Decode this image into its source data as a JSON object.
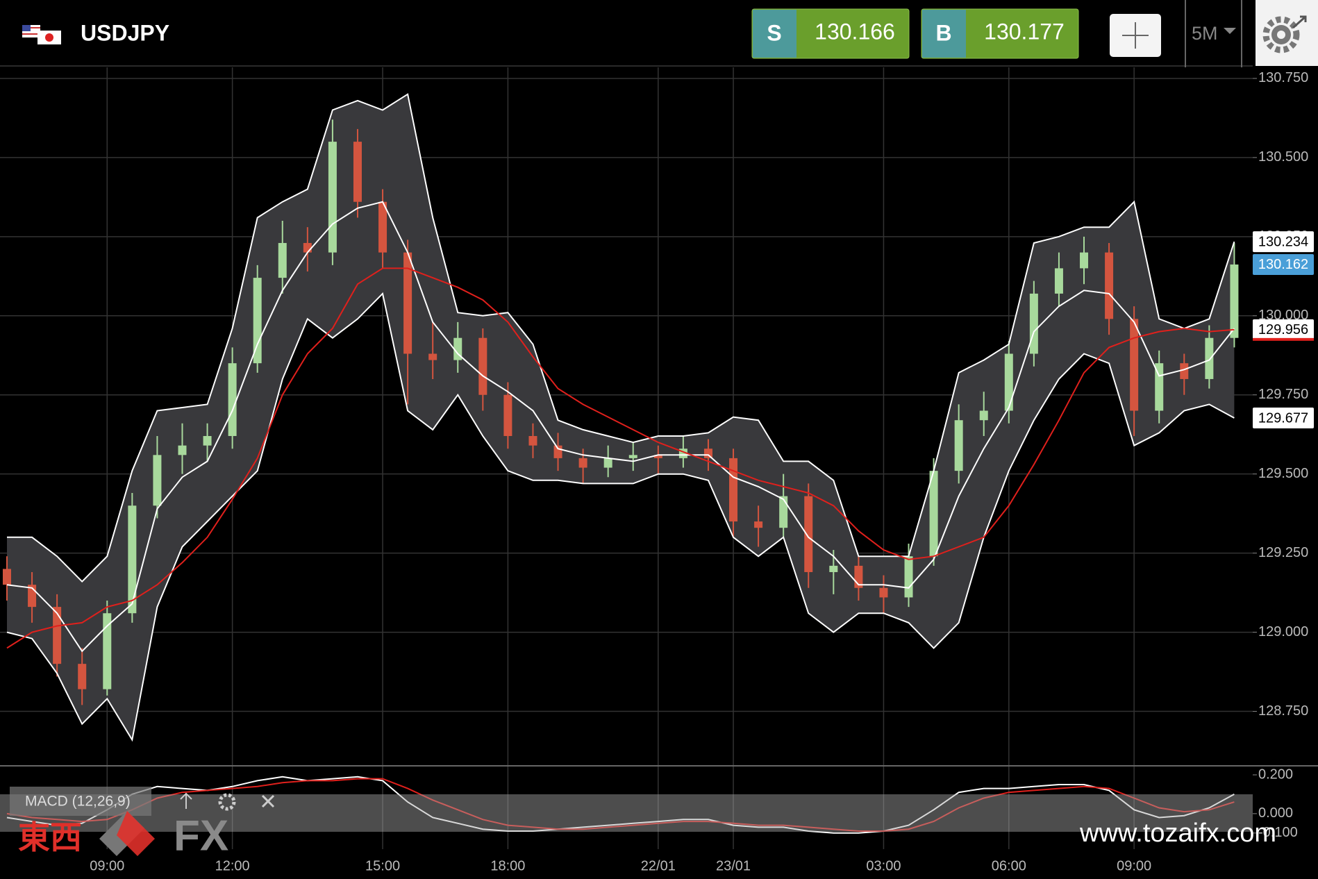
{
  "header": {
    "symbol": "USDJPY",
    "sell": {
      "label": "S",
      "price": 130.166
    },
    "buy": {
      "label": "B",
      "price": 130.177
    },
    "timeframe": "5M"
  },
  "chart_data": [
    {
      "type": "candlestick",
      "categories": [
        null,
        null,
        null,
        null,
        "09:00",
        null,
        null,
        null,
        null,
        "12:00",
        null,
        null,
        null,
        null,
        null,
        "15:00",
        null,
        null,
        null,
        null,
        "18:00",
        null,
        null,
        null,
        null,
        null,
        "22/01",
        null,
        null,
        "23/01",
        null,
        null,
        null,
        null,
        null,
        "03:00",
        null,
        null,
        null,
        null,
        "06:00",
        null,
        null,
        null,
        null,
        "09:00",
        null,
        null,
        null,
        null
      ],
      "open": [
        129.2,
        129.15,
        129.08,
        128.9,
        128.82,
        129.06,
        129.4,
        129.56,
        129.59,
        129.62,
        129.85,
        130.12,
        130.23,
        130.2,
        130.55,
        130.36,
        130.2,
        129.88,
        129.86,
        129.93,
        129.75,
        129.62,
        129.59,
        129.55,
        129.52,
        129.55,
        129.56,
        129.55,
        129.58,
        129.55,
        129.35,
        129.33,
        129.43,
        129.19,
        129.21,
        129.14,
        129.11,
        129.24,
        129.51,
        129.67,
        129.7,
        129.88,
        130.07,
        130.15,
        130.2,
        129.99,
        129.7,
        129.85,
        129.8,
        129.93
      ],
      "high": [
        129.24,
        129.19,
        129.12,
        128.95,
        129.1,
        129.44,
        129.62,
        129.66,
        129.66,
        129.9,
        130.16,
        130.3,
        130.28,
        130.62,
        130.59,
        130.4,
        130.24,
        129.98,
        129.98,
        129.96,
        129.79,
        129.66,
        129.63,
        129.58,
        129.59,
        129.6,
        129.59,
        129.62,
        129.61,
        129.58,
        129.4,
        129.5,
        129.47,
        129.26,
        129.24,
        129.18,
        129.28,
        129.55,
        129.72,
        129.76,
        129.92,
        130.11,
        130.2,
        130.25,
        130.23,
        130.03,
        129.89,
        129.88,
        129.97,
        130.23
      ],
      "low": [
        129.1,
        129.03,
        128.86,
        128.77,
        128.8,
        129.03,
        129.36,
        129.5,
        129.54,
        129.58,
        129.82,
        130.07,
        130.14,
        130.16,
        130.31,
        130.15,
        129.72,
        129.8,
        129.82,
        129.7,
        129.58,
        129.55,
        129.51,
        129.47,
        129.49,
        129.51,
        129.5,
        129.52,
        129.51,
        129.3,
        129.27,
        129.3,
        129.14,
        129.12,
        129.1,
        129.06,
        129.08,
        129.21,
        129.47,
        129.62,
        129.66,
        129.84,
        130.03,
        130.1,
        129.94,
        129.62,
        129.66,
        129.75,
        129.77,
        129.9
      ],
      "close": [
        129.15,
        129.08,
        128.9,
        128.82,
        129.06,
        129.4,
        129.56,
        129.59,
        129.62,
        129.85,
        130.12,
        130.23,
        130.2,
        130.55,
        130.36,
        130.2,
        129.88,
        129.86,
        129.93,
        129.75,
        129.62,
        129.59,
        129.55,
        129.52,
        129.55,
        129.56,
        129.55,
        129.58,
        129.55,
        129.35,
        129.33,
        129.43,
        129.19,
        129.21,
        129.14,
        129.11,
        129.24,
        129.51,
        129.67,
        129.7,
        129.88,
        130.07,
        130.15,
        130.2,
        129.99,
        129.7,
        129.85,
        129.8,
        129.93,
        130.162
      ],
      "up_color": "#a8d99c",
      "down_color": "#d4553f",
      "last_color": "#4a9fd8",
      "band_fill": "#39393c",
      "bb_upper": {
        "color": "#ffffff",
        "values": [
          129.3,
          129.3,
          129.24,
          129.16,
          129.24,
          129.51,
          129.7,
          129.71,
          129.72,
          129.96,
          130.31,
          130.36,
          130.4,
          130.65,
          130.68,
          130.65,
          130.7,
          130.31,
          130.01,
          130.0,
          130.01,
          129.91,
          129.67,
          129.64,
          129.62,
          129.6,
          129.62,
          129.62,
          129.63,
          129.68,
          129.67,
          129.54,
          129.54,
          129.48,
          129.24,
          129.24,
          129.24,
          129.51,
          129.82,
          129.86,
          129.91,
          130.23,
          130.25,
          130.28,
          130.28,
          130.36,
          129.99,
          129.96,
          129.99,
          130.234
        ]
      },
      "bb_middle": {
        "color": "#ffffff",
        "values": [
          129.15,
          129.14,
          129.06,
          128.94,
          129.02,
          129.09,
          129.39,
          129.49,
          129.54,
          129.7,
          129.91,
          130.08,
          130.2,
          130.29,
          130.34,
          130.36,
          130.2,
          129.98,
          129.88,
          129.81,
          129.76,
          129.7,
          129.58,
          129.56,
          129.55,
          129.54,
          129.56,
          129.56,
          129.56,
          129.49,
          129.46,
          129.42,
          129.3,
          129.24,
          129.15,
          129.15,
          129.14,
          129.23,
          129.43,
          129.58,
          129.71,
          129.95,
          130.03,
          130.08,
          130.07,
          129.98,
          129.81,
          129.83,
          129.86,
          129.96
        ]
      },
      "bb_lower": {
        "color": "#ffffff",
        "values": [
          129.0,
          128.98,
          128.87,
          128.71,
          128.79,
          128.66,
          129.08,
          129.27,
          129.35,
          129.43,
          129.51,
          129.8,
          129.99,
          129.93,
          129.99,
          130.07,
          129.7,
          129.64,
          129.75,
          129.62,
          129.51,
          129.48,
          129.48,
          129.47,
          129.47,
          129.47,
          129.5,
          129.5,
          129.48,
          129.3,
          129.24,
          129.3,
          129.06,
          129.0,
          129.06,
          129.06,
          129.03,
          128.95,
          129.03,
          129.3,
          129.51,
          129.67,
          129.8,
          129.88,
          129.85,
          129.59,
          129.63,
          129.7,
          129.72,
          129.677
        ]
      },
      "sma": {
        "color": "#e0201c",
        "values": [
          128.95,
          129.0,
          129.02,
          129.03,
          129.08,
          129.1,
          129.15,
          129.22,
          129.3,
          129.42,
          129.55,
          129.75,
          129.88,
          129.96,
          130.1,
          130.15,
          130.15,
          130.12,
          130.09,
          130.05,
          129.98,
          129.87,
          129.77,
          129.72,
          129.68,
          129.64,
          129.6,
          129.57,
          129.54,
          129.51,
          129.48,
          129.46,
          129.44,
          129.4,
          129.32,
          129.26,
          129.23,
          129.24,
          129.27,
          129.3,
          129.4,
          129.53,
          129.67,
          129.82,
          129.9,
          129.93,
          129.95,
          129.96,
          129.95,
          129.956
        ]
      },
      "ylim": [
        128.58,
        130.785
      ],
      "yticks": [
        {
          "value": 128.75,
          "label": "128.750"
        },
        {
          "value": 129,
          "label": "129.000"
        },
        {
          "value": 129.25,
          "label": "129.250"
        },
        {
          "value": 129.5,
          "label": "129.500"
        },
        {
          "value": 129.75,
          "label": "129.750"
        },
        {
          "value": 130,
          "label": "130.000"
        },
        {
          "value": 130.25,
          "label": "130.250"
        },
        {
          "value": 130.5,
          "label": "130.500"
        },
        {
          "value": 130.75,
          "label": "130.750"
        }
      ],
      "grid": true
    },
    {
      "type": "line",
      "title": "MACD (12,26,9)",
      "series": [
        {
          "color": "#ffffff",
          "values": [
            -0.02,
            -0.04,
            -0.06,
            -0.05,
            0.02,
            0.1,
            0.14,
            0.13,
            0.12,
            0.14,
            0.17,
            0.19,
            0.17,
            0.18,
            0.19,
            0.17,
            0.06,
            -0.02,
            -0.05,
            -0.08,
            -0.09,
            -0.09,
            -0.08,
            -0.07,
            -0.06,
            -0.05,
            -0.04,
            -0.03,
            -0.03,
            -0.06,
            -0.07,
            -0.07,
            -0.09,
            -0.1,
            -0.1,
            -0.09,
            -0.06,
            0.02,
            0.11,
            0.13,
            0.13,
            0.14,
            0.15,
            0.15,
            0.12,
            0.02,
            -0.02,
            -0.01,
            0.03,
            0.1
          ]
        },
        {
          "color": "#e0201c",
          "values": [
            0.0,
            -0.02,
            -0.03,
            -0.04,
            -0.03,
            0.02,
            0.08,
            0.11,
            0.12,
            0.13,
            0.14,
            0.16,
            0.17,
            0.17,
            0.18,
            0.18,
            0.13,
            0.07,
            0.02,
            -0.03,
            -0.06,
            -0.07,
            -0.08,
            -0.08,
            -0.07,
            -0.06,
            -0.05,
            -0.04,
            -0.04,
            -0.05,
            -0.06,
            -0.06,
            -0.07,
            -0.08,
            -0.09,
            -0.09,
            -0.08,
            -0.04,
            0.03,
            0.08,
            0.11,
            0.12,
            0.13,
            0.14,
            0.13,
            0.08,
            0.03,
            0.01,
            0.02,
            0.06
          ]
        }
      ],
      "ylim": [
        -0.183,
        0.243
      ],
      "yticks": [
        {
          "value": -0.1,
          "label": "-0.100"
        },
        {
          "value": 0,
          "label": "0.000"
        },
        {
          "value": 0.2,
          "label": "0.200"
        }
      ]
    }
  ],
  "watermark": {
    "brand_kanji": "東西",
    "brand_fx": "FX",
    "url": "www.tozaifx.com"
  }
}
